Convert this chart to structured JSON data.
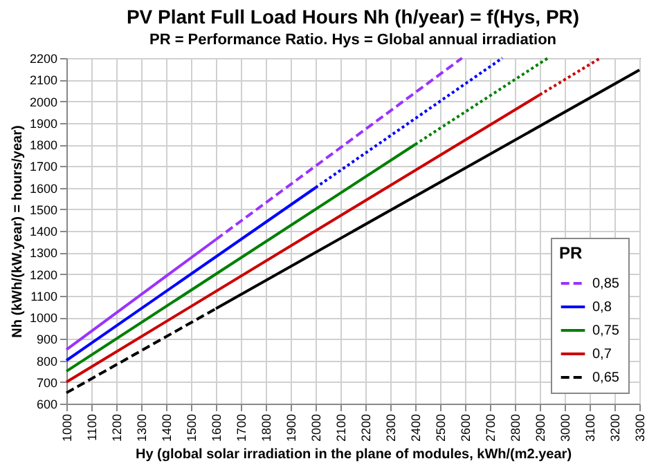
{
  "chart_data": {
    "type": "line",
    "title": "PV Plant Full Load Hours Nh (h/year) = f(Hys, PR)",
    "subtitle": "PR = Performance Ratio. Hys = Global annual irradiation",
    "xlabel": "Hy (global solar irradiation in the plane of modules, kWh/(m2.year)",
    "ylabel": "Nh (kWh/(kW.year) = hours/year)",
    "legend_title": "PR",
    "series": [
      {
        "name": "0,85",
        "color": "#9933ff",
        "line_style": "dashed",
        "x": [
          1600,
          2588
        ],
        "values": [
          1360,
          2200
        ]
      },
      {
        "color": "#9933ff",
        "line_style": "solid",
        "x": [
          1000,
          1600
        ],
        "values": [
          850,
          1360
        ]
      },
      {
        "name": "0,8",
        "color": "#0000ff",
        "line_style": "solid",
        "x": [
          1000,
          2000
        ],
        "values": [
          800,
          1600
        ]
      },
      {
        "color": "#0000ff",
        "line_style": "dotted",
        "x": [
          2000,
          2750
        ],
        "values": [
          1600,
          2200
        ]
      },
      {
        "name": "0,75",
        "color": "#008000",
        "line_style": "solid",
        "x": [
          1000,
          2400
        ],
        "values": [
          750,
          1800
        ]
      },
      {
        "color": "#008000",
        "line_style": "dotted",
        "x": [
          2400,
          2933
        ],
        "values": [
          1800,
          2200
        ]
      },
      {
        "name": "0,7",
        "color": "#cc0000",
        "line_style": "solid",
        "x": [
          1000,
          2900
        ],
        "values": [
          700,
          2030
        ]
      },
      {
        "color": "#cc0000",
        "line_style": "dotted",
        "x": [
          2900,
          3143
        ],
        "values": [
          2030,
          2200
        ]
      },
      {
        "name": "0,65",
        "color": "#000000",
        "line_style": "dashed",
        "x": [
          1000,
          1600
        ],
        "values": [
          650,
          1040
        ]
      },
      {
        "color": "#000000",
        "line_style": "solid",
        "x": [
          1600,
          3300
        ],
        "values": [
          1040,
          2145
        ]
      }
    ],
    "xlim": [
      1000,
      3300
    ],
    "xticks": [
      1000,
      1100,
      1200,
      1300,
      1400,
      1500,
      1600,
      1700,
      1800,
      1900,
      2000,
      2100,
      2200,
      2300,
      2400,
      2500,
      2600,
      2700,
      2800,
      2900,
      3000,
      3100,
      3200,
      3300
    ],
    "ylim": [
      600,
      2200
    ],
    "yticks": [
      600,
      700,
      800,
      900,
      1000,
      1100,
      1200,
      1300,
      1400,
      1500,
      1600,
      1700,
      1800,
      1900,
      2000,
      2100,
      2200
    ],
    "grid": true,
    "legend": "bottom right",
    "marker": "none"
  }
}
